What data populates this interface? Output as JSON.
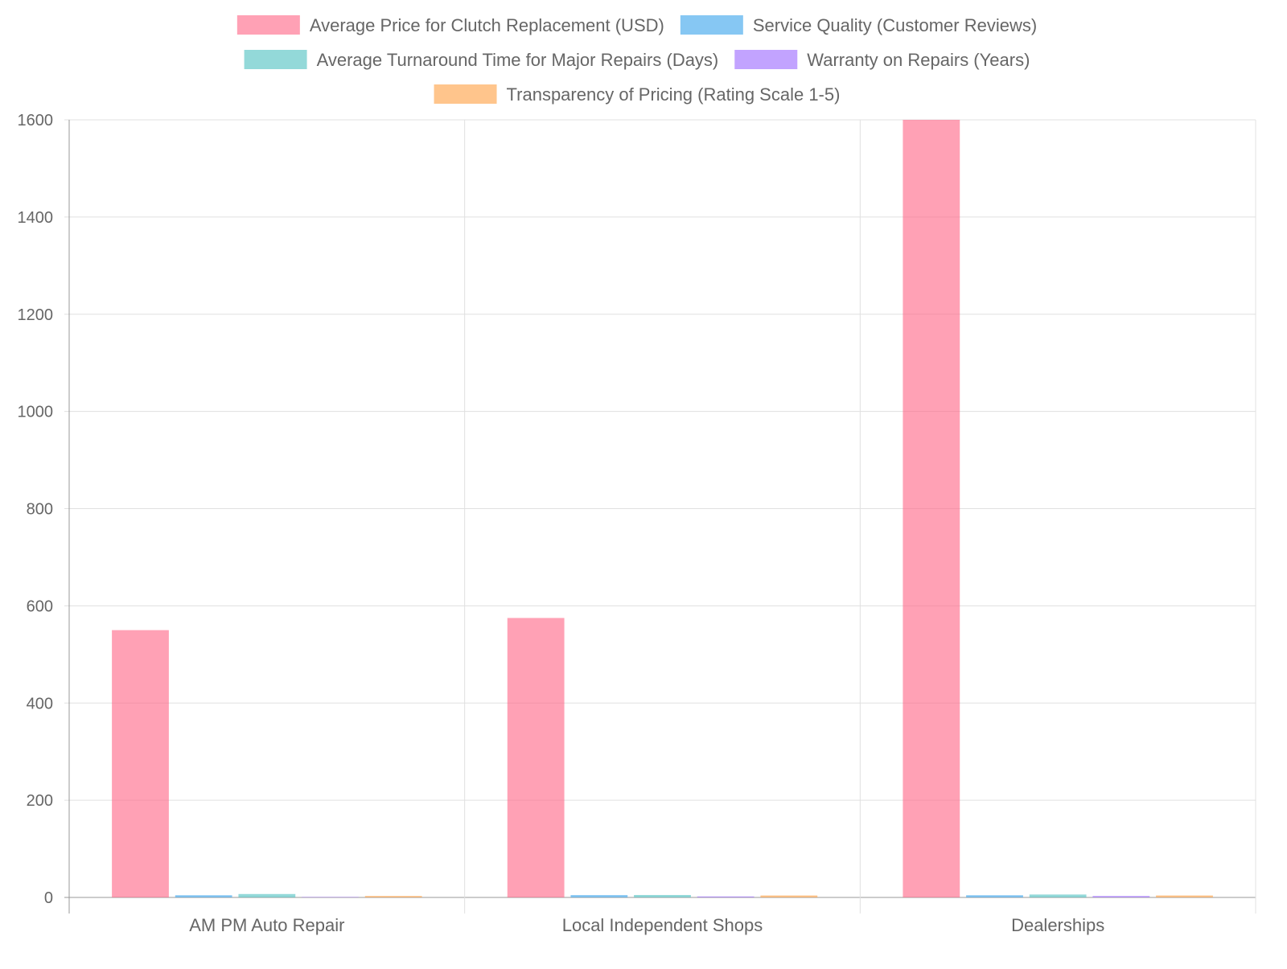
{
  "chart_data": {
    "type": "bar",
    "title": "",
    "xlabel": "",
    "ylabel": "",
    "categories": [
      "AM PM Auto Repair",
      "Local Independent Shops",
      "Dealerships"
    ],
    "ylim": [
      0,
      1600
    ],
    "yticks": [
      0,
      200,
      400,
      600,
      800,
      1000,
      1200,
      1400,
      1600
    ],
    "grid": true,
    "legend_position": "top",
    "series": [
      {
        "name": "Average Price for Clutch Replacement (USD)",
        "values": [
          550,
          575,
          1600
        ],
        "color": "#ff6384"
      },
      {
        "name": "Service Quality (Customer Reviews)",
        "values": [
          4.5,
          4.8,
          4.5
        ],
        "color": "#36a2eb"
      },
      {
        "name": "Average Turnaround Time for Major Repairs (Days)",
        "values": [
          7,
          5,
          6
        ],
        "color": "#4bc0c0"
      },
      {
        "name": "Warranty on Repairs (Years)",
        "values": [
          1,
          2,
          3
        ],
        "color": "#9966ff"
      },
      {
        "name": "Transparency of Pricing (Rating Scale 1-5)",
        "values": [
          3,
          4,
          4
        ],
        "color": "#ff9f40"
      }
    ]
  }
}
